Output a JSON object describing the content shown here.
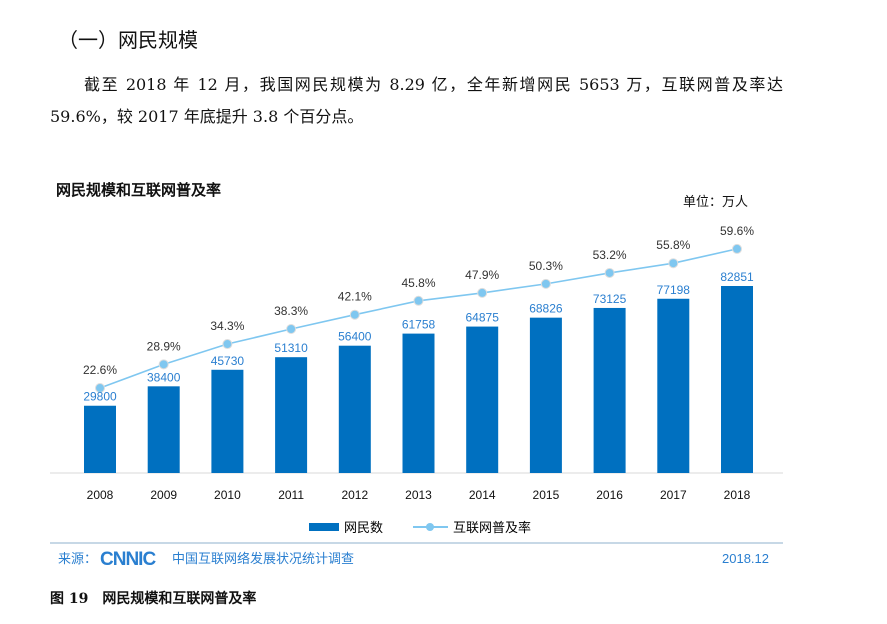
{
  "heading": "（一）网民规模",
  "paragraph": {
    "line1": "截至 2018 年 12 月，我国网民规模为 8.29 亿，全年新增网民 5653 万，互联网普及率达",
    "line2": "59.6%，较 2017 年底提升 3.8 个百分点。"
  },
  "chart_data": {
    "type": "bar",
    "title": "网民规模和互联网普及率",
    "unit": "单位：万人",
    "categories": [
      "2008",
      "2009",
      "2010",
      "2011",
      "2012",
      "2013",
      "2014",
      "2015",
      "2016",
      "2017",
      "2018"
    ],
    "series": [
      {
        "name": "网民数",
        "type": "bar",
        "color": "#0070c0",
        "values": [
          29800,
          38400,
          45730,
          51310,
          56400,
          61758,
          64875,
          68826,
          73125,
          77198,
          82851
        ]
      },
      {
        "name": "互联网普及率",
        "type": "line",
        "color": "#7fc7f0",
        "values": [
          22.6,
          28.9,
          34.3,
          38.3,
          42.1,
          45.8,
          47.9,
          50.3,
          53.2,
          55.8,
          59.6
        ],
        "labels": [
          "22.6%",
          "28.9%",
          "34.3%",
          "38.3%",
          "42.1%",
          "45.8%",
          "47.9%",
          "50.3%",
          "53.2%",
          "55.8%",
          "59.6%"
        ]
      }
    ],
    "legend": "bottom",
    "grid": false,
    "value_label_color": "#2a7fd0"
  },
  "source": {
    "label": "来源：",
    "logo": "CNNIC",
    "org": "中国互联网络发展状况统计调查",
    "date": "2018.12"
  },
  "caption": {
    "num": "图 19",
    "text": "网民规模和互联网普及率"
  }
}
